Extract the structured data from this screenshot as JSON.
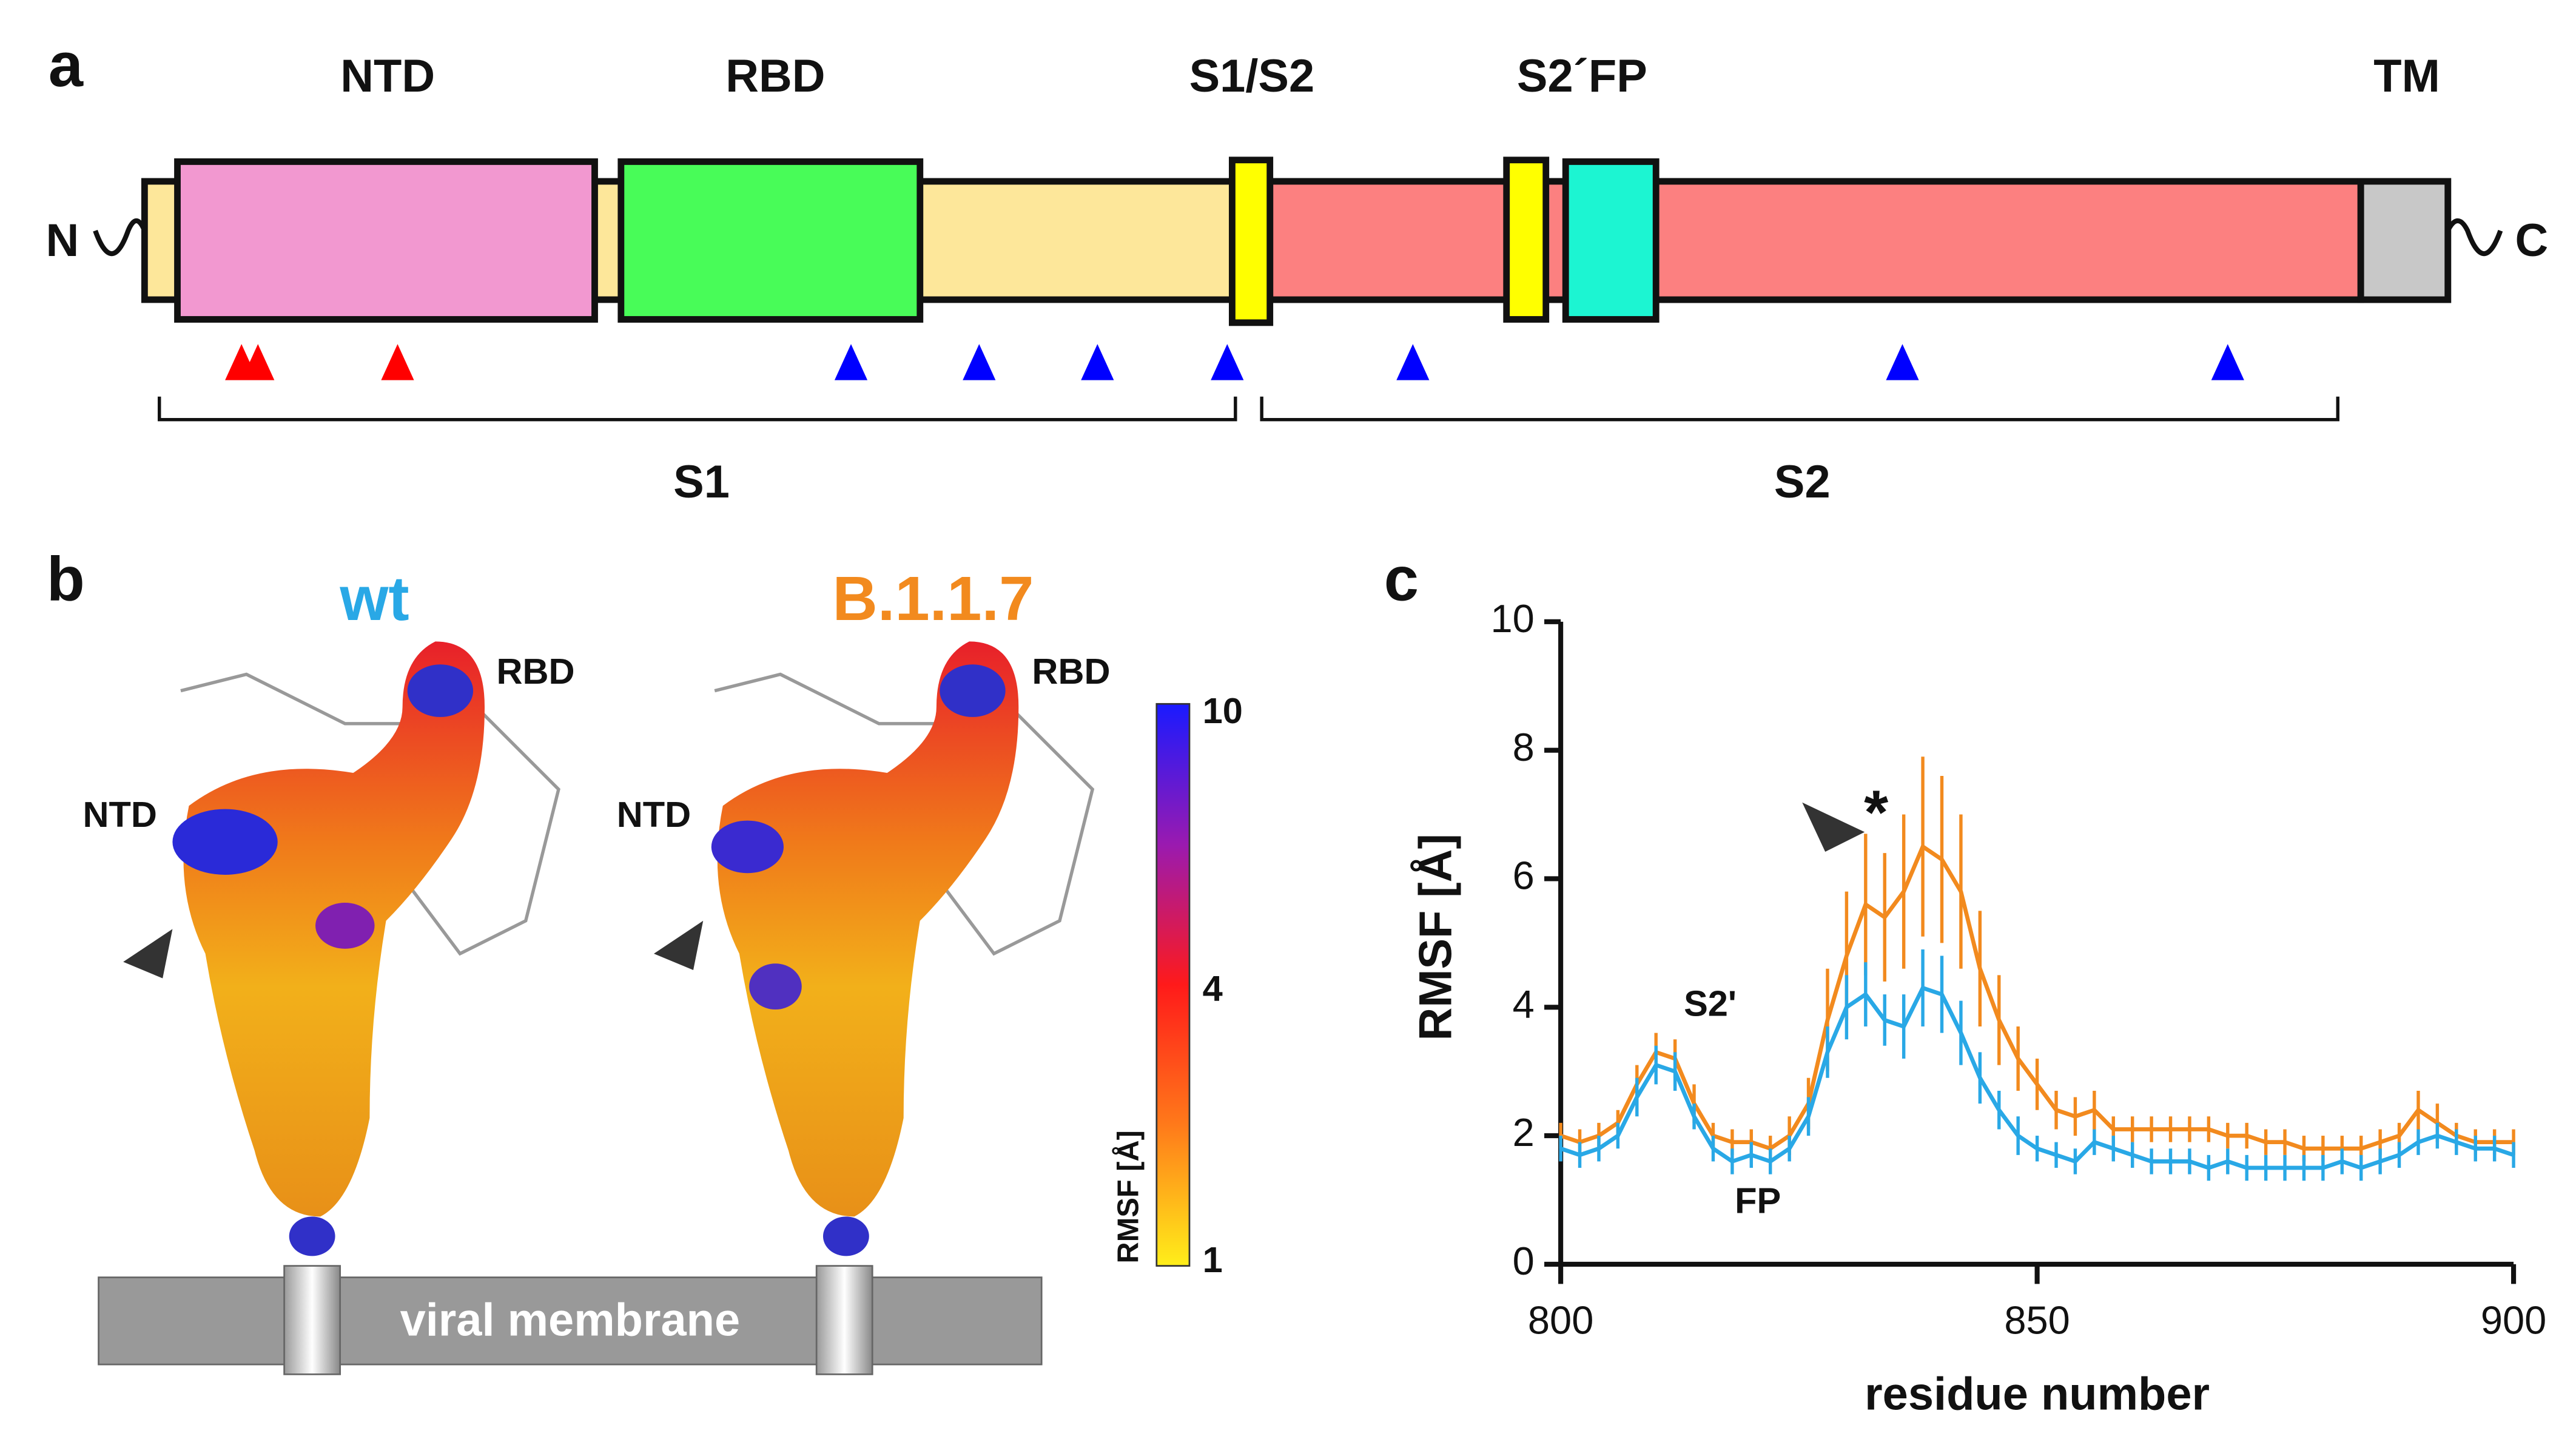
{
  "panel_a": {
    "label": "a",
    "domains": [
      "NTD",
      "RBD",
      "S1/S2",
      "S2´FP",
      "TM"
    ],
    "termini": [
      "N",
      "C"
    ],
    "subunits": [
      "S1",
      "S2"
    ]
  },
  "panel_b": {
    "label": "b",
    "structures": [
      {
        "name": "wt",
        "rbd": "RBD",
        "ntd": "NTD"
      },
      {
        "name": "B.1.1.7",
        "rbd": "RBD",
        "ntd": "NTD"
      }
    ],
    "membrane": "viral membrane",
    "colorbar": {
      "label": "RMSF [Å]",
      "ticks": [
        10,
        4,
        1
      ]
    }
  },
  "chart_data": {
    "type": "line",
    "label": "c",
    "xlabel": "residue number",
    "ylabel": "RMSF [Å]",
    "annotations": [
      "S2'",
      "FP",
      "*"
    ],
    "xlim": [
      800,
      900
    ],
    "xticks": [
      800,
      850,
      900
    ],
    "ylim": [
      0,
      10
    ],
    "yticks": [
      0,
      2,
      4,
      6,
      8,
      10
    ],
    "x": [
      800,
      802,
      804,
      806,
      808,
      810,
      812,
      814,
      816,
      818,
      820,
      822,
      824,
      826,
      828,
      830,
      832,
      834,
      836,
      838,
      840,
      842,
      844,
      846,
      848,
      850,
      852,
      854,
      856,
      858,
      860,
      862,
      864,
      866,
      868,
      870,
      872,
      874,
      876,
      878,
      880,
      882,
      884,
      886,
      888,
      890,
      892,
      894,
      896,
      898,
      900
    ],
    "series": [
      {
        "name": "B.1.1.7",
        "color": "#f28a1e",
        "values": [
          2.0,
          1.9,
          2.0,
          2.2,
          2.8,
          3.3,
          3.2,
          2.5,
          2.0,
          1.9,
          1.9,
          1.8,
          2.0,
          2.5,
          3.8,
          4.8,
          5.6,
          5.4,
          5.8,
          6.5,
          6.3,
          5.8,
          4.6,
          3.8,
          3.2,
          2.8,
          2.4,
          2.3,
          2.4,
          2.1,
          2.1,
          2.1,
          2.1,
          2.1,
          2.1,
          2.0,
          2.0,
          1.9,
          1.9,
          1.8,
          1.8,
          1.8,
          1.8,
          1.9,
          2.0,
          2.4,
          2.2,
          2.0,
          1.9,
          1.9,
          1.9
        ],
        "errors": [
          0.2,
          0.2,
          0.2,
          0.2,
          0.3,
          0.3,
          0.3,
          0.3,
          0.2,
          0.2,
          0.2,
          0.2,
          0.3,
          0.4,
          0.8,
          1.0,
          1.1,
          1.0,
          1.2,
          1.4,
          1.3,
          1.2,
          0.9,
          0.7,
          0.5,
          0.4,
          0.3,
          0.3,
          0.3,
          0.2,
          0.2,
          0.2,
          0.2,
          0.2,
          0.2,
          0.2,
          0.2,
          0.2,
          0.2,
          0.2,
          0.2,
          0.2,
          0.2,
          0.2,
          0.2,
          0.3,
          0.3,
          0.2,
          0.2,
          0.2,
          0.2
        ]
      },
      {
        "name": "wt",
        "color": "#29a8e6",
        "values": [
          1.8,
          1.7,
          1.8,
          2.0,
          2.6,
          3.1,
          3.0,
          2.3,
          1.8,
          1.6,
          1.7,
          1.6,
          1.8,
          2.3,
          3.3,
          4.0,
          4.2,
          3.8,
          3.7,
          4.3,
          4.2,
          3.6,
          2.9,
          2.4,
          2.0,
          1.8,
          1.7,
          1.6,
          1.9,
          1.8,
          1.7,
          1.6,
          1.6,
          1.6,
          1.5,
          1.6,
          1.5,
          1.5,
          1.5,
          1.5,
          1.5,
          1.6,
          1.5,
          1.6,
          1.7,
          1.9,
          2.0,
          1.9,
          1.8,
          1.8,
          1.7
        ],
        "errors": [
          0.2,
          0.2,
          0.2,
          0.2,
          0.3,
          0.3,
          0.3,
          0.2,
          0.2,
          0.2,
          0.2,
          0.2,
          0.2,
          0.3,
          0.4,
          0.5,
          0.5,
          0.4,
          0.5,
          0.6,
          0.6,
          0.5,
          0.4,
          0.3,
          0.3,
          0.2,
          0.2,
          0.2,
          0.2,
          0.2,
          0.2,
          0.2,
          0.2,
          0.2,
          0.2,
          0.2,
          0.2,
          0.2,
          0.2,
          0.2,
          0.2,
          0.2,
          0.2,
          0.2,
          0.2,
          0.2,
          0.2,
          0.2,
          0.2,
          0.2,
          0.2
        ]
      }
    ]
  }
}
